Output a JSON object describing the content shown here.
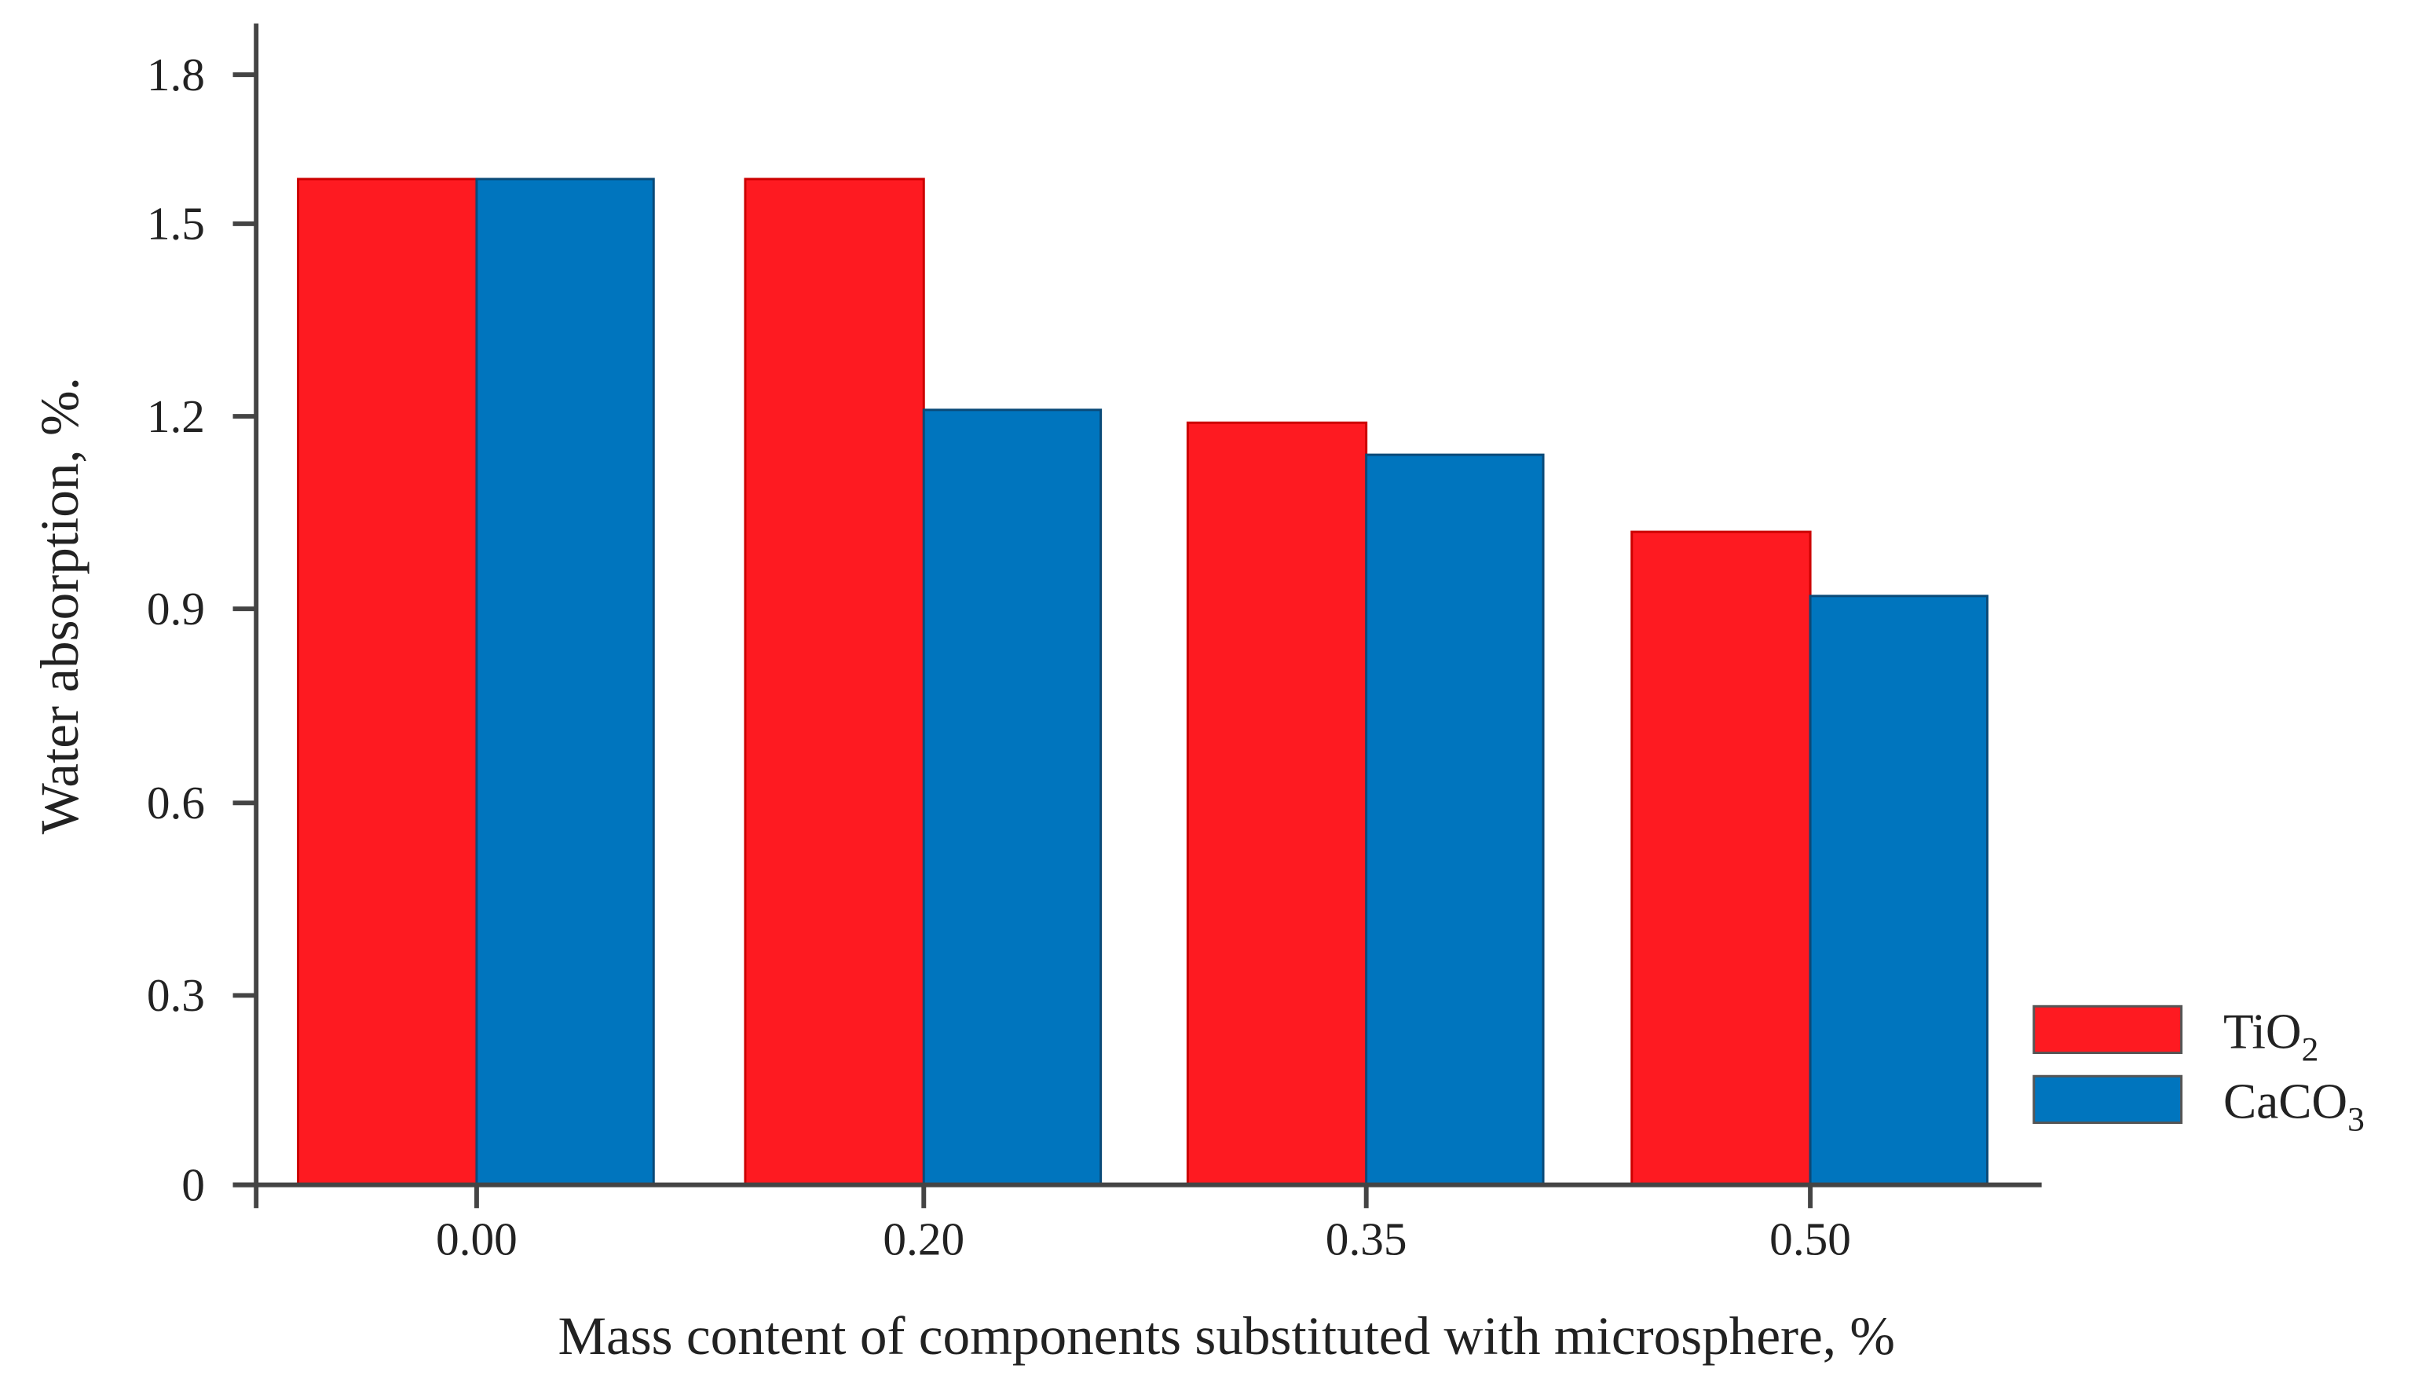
{
  "chart_data": {
    "type": "bar",
    "title": "",
    "xlabel": "Mass content of components substituted with microsphere, %",
    "ylabel": "Water absorption, %.",
    "categories": [
      "0.00",
      "0.20",
      "0.35",
      "0.50"
    ],
    "yticks": [
      "0",
      "0.3",
      "0.6",
      "0.9",
      "1.2",
      "1.5",
      "1.8"
    ],
    "ylim": [
      0,
      1.8
    ],
    "grid": false,
    "legend_placement": "bottom-right",
    "series": [
      {
        "name": "TiO",
        "name_sub": "2",
        "color": "#fe1a21",
        "values": [
          1.59,
          1.59,
          1.19,
          1.02
        ]
      },
      {
        "name": "CaCO",
        "name_sub": "3",
        "color": "#0075be",
        "values": [
          1.59,
          1.21,
          1.14,
          0.92
        ]
      }
    ]
  }
}
